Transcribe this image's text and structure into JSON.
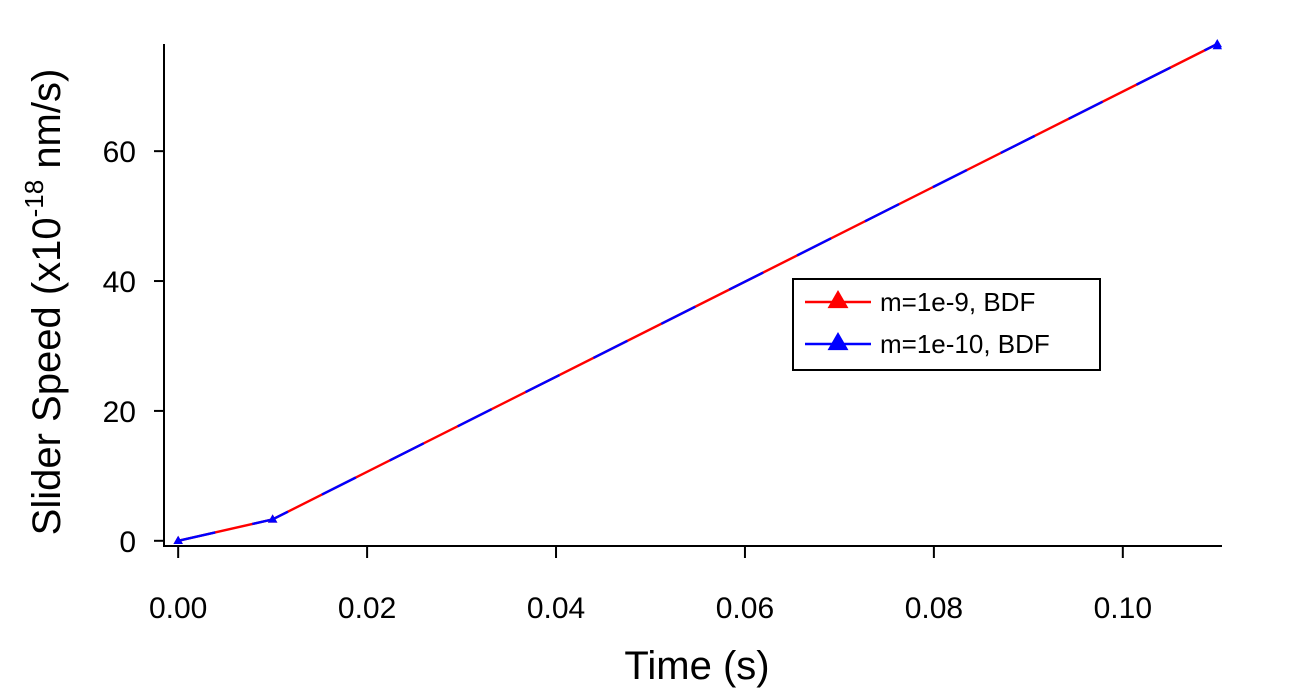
{
  "chart_data": {
    "type": "line",
    "xlabel": "Time (s)",
    "ylabel": {
      "prefix": "Slider Speed (x10",
      "exponent": "-18",
      "suffix": " nm/s)"
    },
    "xlim": [
      -0.0015,
      0.1105
    ],
    "ylim": [
      -0.8,
      76.5
    ],
    "xticks": [
      {
        "value": 0.0,
        "label": "0.00"
      },
      {
        "value": 0.02,
        "label": "0.02"
      },
      {
        "value": 0.04,
        "label": "0.04"
      },
      {
        "value": 0.06,
        "label": "0.06"
      },
      {
        "value": 0.08,
        "label": "0.08"
      },
      {
        "value": 0.1,
        "label": "0.10"
      }
    ],
    "yticks": [
      {
        "value": 0,
        "label": "0"
      },
      {
        "value": 20,
        "label": "20"
      },
      {
        "value": 40,
        "label": "40"
      },
      {
        "value": 60,
        "label": "60"
      }
    ],
    "legend_position": "center-right",
    "series": [
      {
        "name": "m=1e-9, BDF",
        "color": "#ff0000",
        "marker": "triangle-up",
        "x": [
          0.0,
          0.01,
          0.11
        ],
        "y": [
          0.0,
          3.3,
          76.5
        ]
      },
      {
        "name": "m=1e-10, BDF",
        "color": "#0000ff",
        "marker": "triangle-up",
        "x": [
          0.0,
          0.01,
          0.11
        ],
        "y": [
          0.0,
          3.3,
          76.5
        ]
      }
    ]
  }
}
